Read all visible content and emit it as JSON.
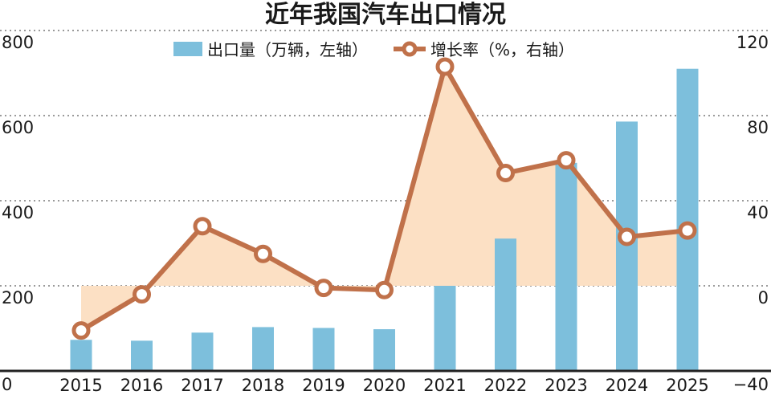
{
  "chart_data": {
    "type": "bar+line",
    "title": "近年我国汽车出口情况",
    "categories": [
      "2015",
      "2016",
      "2017",
      "2018",
      "2019",
      "2020",
      "2021",
      "2022",
      "2023",
      "2024",
      "2025"
    ],
    "series": [
      {
        "name": "出口量（万辆，左轴）",
        "type": "bar",
        "axis": "left",
        "color": "#7dbfdc",
        "values": [
          73,
          71,
          90,
          103,
          101,
          98,
          200,
          311,
          489,
          586,
          710
        ]
      },
      {
        "name": "增长率（%，右轴）",
        "type": "line",
        "axis": "right",
        "color": "#c0714a",
        "fill": "#fce0c4",
        "values": [
          -21,
          -4,
          28,
          15,
          -1,
          -2,
          103,
          53,
          59,
          23,
          26
        ]
      }
    ],
    "y_left": {
      "range": [
        0,
        800
      ],
      "ticks": [
        "0",
        "200",
        "400",
        "600",
        "800"
      ]
    },
    "y_right": {
      "range": [
        -40,
        120
      ],
      "ticks": [
        "−40",
        "0",
        "40",
        "80",
        "120"
      ]
    },
    "grid": "horizontal dotted",
    "legend_position": "top"
  }
}
